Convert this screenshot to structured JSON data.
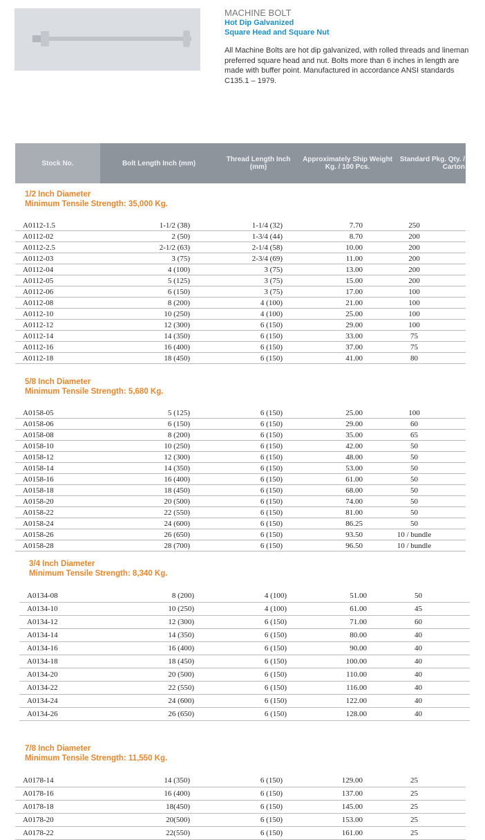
{
  "product": {
    "title": "MACHINE BOLT",
    "subtitle1": "Hot Dip Galvanized",
    "subtitle2": "Square Head and Square Nut",
    "description": "All Machine Bolts are hot dip galvanized, with rolled threads and lineman preferred square head and nut. Bolts more than 6 inches in length are made with buffer point. Manufactured in accordance ANSI standards C135.1 – 1979."
  },
  "headers": [
    "Stock No.",
    "Bolt Length Inch (mm)",
    "Thread Length Inch (mm)",
    "Approximately Ship Weight Kg. / 100 Pcs.",
    "Standard Pkg. Qty. / Carton"
  ],
  "sections": [
    {
      "title": "1/2 Inch Diameter",
      "strength": "Minimum Tensile Strength: 35,000 Kg.",
      "rows": [
        [
          "A0112-1.5",
          "1-1/2 (38)",
          "1-1/4 (32)",
          "7.70",
          "250"
        ],
        [
          "A0112-02",
          "2 (50)",
          "1-3/4 (44)",
          "8.70",
          "200"
        ],
        [
          "A0112-2.5",
          "2-1/2 (63)",
          "2-1/4 (58)",
          "10.00",
          "200"
        ],
        [
          "A0112-03",
          "3 (75)",
          "2-3/4 (69)",
          "11.00",
          "200"
        ],
        [
          "A0112-04",
          "4 (100)",
          "3 (75)",
          "13.00",
          "200"
        ],
        [
          "A0112-05",
          "5 (125)",
          "3 (75)",
          "15.00",
          "200"
        ],
        [
          "A0112-06",
          "6 (150)",
          "3 (75)",
          "17.00",
          "100"
        ],
        [
          "A0112-08",
          "8 (200)",
          "4 (100)",
          "21.00",
          "100"
        ],
        [
          "A0112-10",
          "10 (250)",
          "4 (100)",
          "25.00",
          "100"
        ],
        [
          "A0112-12",
          "12 (300)",
          "6 (150)",
          "29.00",
          "100"
        ],
        [
          "A0112-14",
          "14 (350)",
          "6 (150)",
          "33.00",
          "75"
        ],
        [
          "A0112-16",
          "16 (400)",
          "6 (150)",
          "37.00",
          "75"
        ],
        [
          "A0112-18",
          "18 (450)",
          "6 (150)",
          "41.00",
          "80"
        ]
      ]
    },
    {
      "title": "5/8 Inch Diameter",
      "strength": "Minimum Tensile Strength: 5,680 Kg.",
      "rows": [
        [
          "A0158-05",
          "5 (125)",
          "6 (150)",
          "25.00",
          "100"
        ],
        [
          "A0158-06",
          "6 (150)",
          "6 (150)",
          "29.00",
          "60"
        ],
        [
          "A0158-08",
          "8 (200)",
          "6 (150)",
          "35.00",
          "65"
        ],
        [
          "A0158-10",
          "10 (250)",
          "6 (150)",
          "42.00",
          "50"
        ],
        [
          "A0158-12",
          "12 (300)",
          "6 (150)",
          "48.00",
          "50"
        ],
        [
          "A0158-14",
          "14 (350)",
          "6 (150)",
          "53.00",
          "50"
        ],
        [
          "A0158-16",
          "16 (400)",
          "6 (150)",
          "61.00",
          "50"
        ],
        [
          "A0158-18",
          "18 (450)",
          "6 (150)",
          "68.00",
          "50"
        ],
        [
          "A0158-20",
          "20 (500)",
          "6 (150)",
          "74.00",
          "50"
        ],
        [
          "A0158-22",
          "22 (550)",
          "6 (150)",
          "81.00",
          "50"
        ],
        [
          "A0158-24",
          "24 (600)",
          "6 (150)",
          "86.25",
          "50"
        ],
        [
          "A0158-26",
          "26 (650)",
          "6 (150)",
          "93.50",
          "10 / bundle"
        ],
        [
          "A0158-28",
          "28 (700)",
          "6 (150)",
          "96.50",
          "10 / bundle"
        ]
      ]
    },
    {
      "title": "3/4  Inch Diameter",
      "strength": "Minimum Tensile Strength: 8,340 Kg.",
      "rows": [
        [
          "A0134-08",
          "8 (200)",
          "4 (100)",
          "51.00",
          "50"
        ],
        [
          "A0134-10",
          "10 (250)",
          "4 (100)",
          "61.00",
          "45"
        ],
        [
          "A0134-12",
          "12 (300)",
          "6 (150)",
          "71.00",
          "60"
        ],
        [
          "A0134-14",
          "14 (350)",
          "6 (150)",
          "80.00",
          "40"
        ],
        [
          "A0134-16",
          "16 (400)",
          "6 (150)",
          "90.00",
          "40"
        ],
        [
          "A0134-18",
          "18 (450)",
          "6 (150)",
          "100.00",
          "40"
        ],
        [
          "A0134-20",
          "20 (500)",
          "6 (150)",
          "110.00",
          "40"
        ],
        [
          "A0134-22",
          "22 (550)",
          "6 (150)",
          "116.00",
          "40"
        ],
        [
          "A0134-24",
          "24 (600)",
          "6 (150)",
          "122.00",
          "40"
        ],
        [
          "A0134-26",
          "26 (650)",
          "6 (150)",
          "128.00",
          "40"
        ]
      ]
    },
    {
      "title": "7/8 Inch Diameter",
      "strength": "Minimum Tensile Strength: 11,550 Kg.",
      "rows": [
        [
          "A0178-14",
          "14 (350)",
          "6 (150)",
          "129.00",
          "25"
        ],
        [
          "A0178-16",
          "16 (400)",
          "6 (150)",
          "137.00",
          "25"
        ],
        [
          "A0178-18",
          "18(450)",
          "6 (150)",
          "145.00",
          "25"
        ],
        [
          "A0178-20",
          "20(500)",
          "6 (150)",
          "153.00",
          "25"
        ],
        [
          "A0178-22",
          "22(550)",
          "6 (150)",
          "161.00",
          "25"
        ]
      ]
    }
  ]
}
